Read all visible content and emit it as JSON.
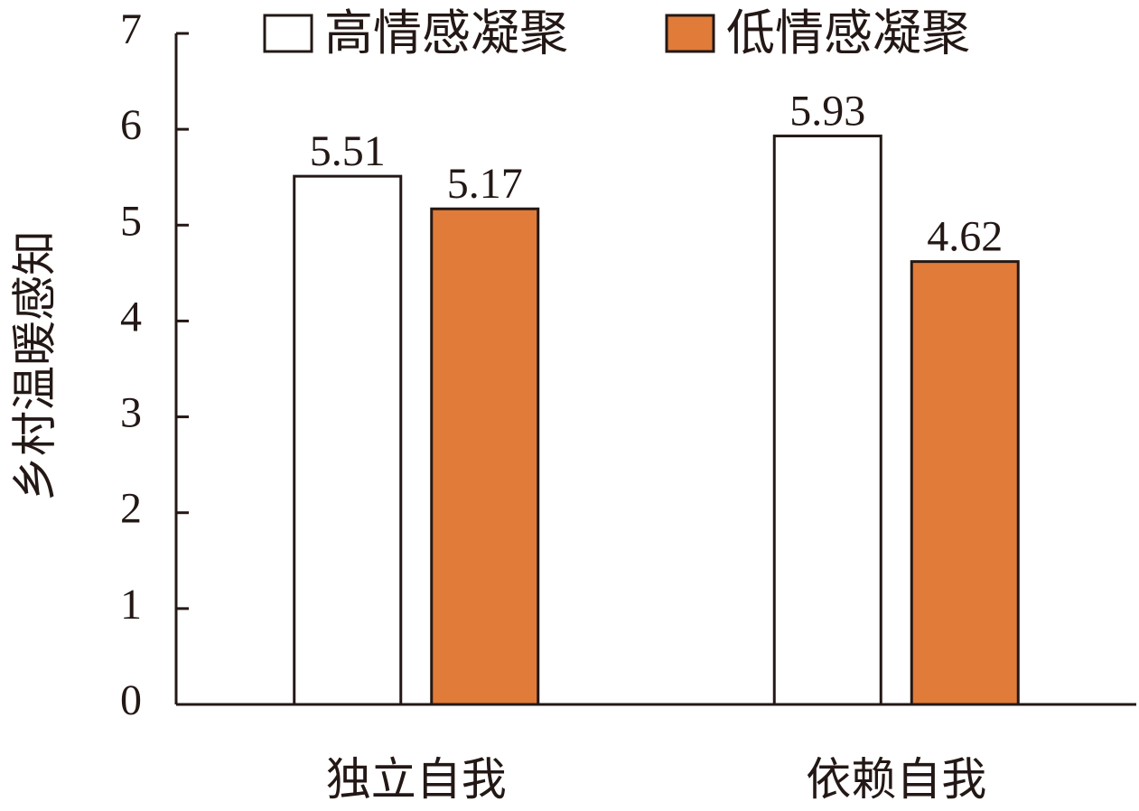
{
  "chart_data": {
    "type": "bar",
    "y_label": "乡村温暖感知",
    "categories": [
      "独立自我",
      "依赖自我"
    ],
    "series": [
      {
        "name": "高情感凝聚",
        "color": "#ffffff",
        "values": [
          5.51,
          5.93
        ]
      },
      {
        "name": "低情感凝聚",
        "color": "#e07b39",
        "values": [
          5.17,
          4.62
        ]
      }
    ],
    "ylim": [
      0,
      7
    ],
    "yticks": [
      0,
      1,
      2,
      3,
      4,
      5,
      6,
      7
    ],
    "legend": "top"
  }
}
